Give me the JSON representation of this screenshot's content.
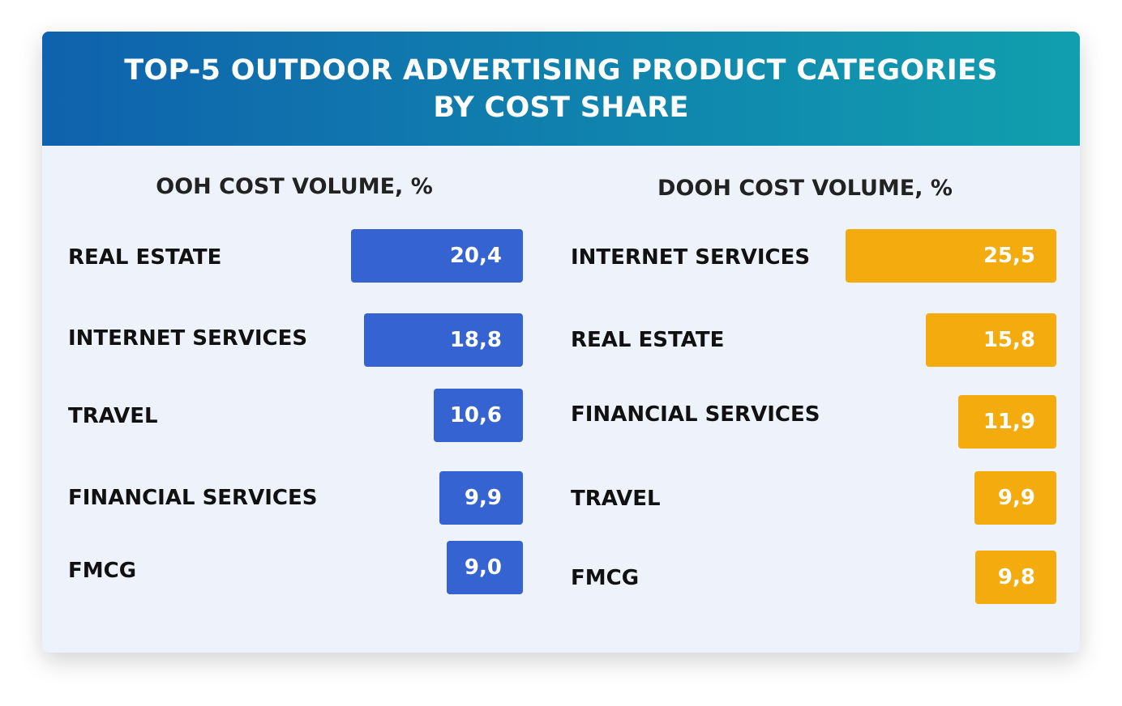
{
  "chart_data": [
    {
      "type": "bar",
      "orientation": "horizontal",
      "title": "TOP-5 OUTDOOR ADVERTISING PRODUCT CATEGORIES BY COST SHARE",
      "subtitle": "OOH COST VOLUME, %",
      "categories": [
        "REAL ESTATE",
        "INTERNET SERVICES",
        "TRAVEL",
        "FINANCIAL SERVICES",
        "FMCG"
      ],
      "values": [
        20.4,
        18.8,
        10.6,
        9.9,
        9.0
      ],
      "value_labels": [
        "20,4",
        "18,8",
        "10,6",
        "9,9",
        "9,0"
      ],
      "color": "#3563d1"
    },
    {
      "type": "bar",
      "orientation": "horizontal",
      "subtitle": "DOOH COST VOLUME, %",
      "categories": [
        "INTERNET SERVICES",
        "REAL ESTATE",
        "FINANCIAL SERVICES",
        "TRAVEL",
        "FMCG"
      ],
      "values": [
        25.5,
        15.8,
        11.9,
        9.9,
        9.8
      ],
      "value_labels": [
        "25,5",
        "15,8",
        "11,9",
        "9,9",
        "9,8"
      ],
      "color": "#f4ab0e"
    }
  ],
  "header": {
    "line1": "TOP-5 OUTDOOR ADVERTISING PRODUCT CATEGORIES",
    "line2": "BY COST SHARE"
  }
}
